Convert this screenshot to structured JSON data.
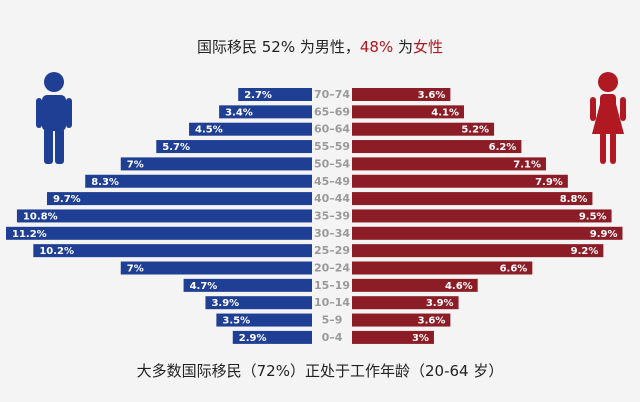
{
  "title": {
    "prefix": "国际移民 52% 为",
    "male_word": "男性",
    "separator": "，",
    "female_pct": "48%",
    "mid": " 为",
    "female_word": "女性"
  },
  "footer": "大多数国际移民（72%）正处于工作年龄（20-64 岁）",
  "colors": {
    "male": "#1f3f94",
    "female": "#8c1c25",
    "background": "#f4f4f4"
  },
  "icons": {
    "male": "male-figure-icon",
    "female": "female-figure-icon"
  },
  "chart_data": {
    "type": "bar",
    "subtype": "population-pyramid",
    "title": "国际移民 52% 为男性，48% 为女性",
    "categories": [
      "70–74",
      "65–69",
      "60–64",
      "55–59",
      "50–54",
      "45–49",
      "40–44",
      "35–39",
      "30–34",
      "25–29",
      "20–24",
      "15–19",
      "10–14",
      "5–9",
      "0–4"
    ],
    "series": [
      {
        "name": "男性",
        "values": [
          2.7,
          3.4,
          4.5,
          5.7,
          7,
          8.3,
          9.7,
          10.8,
          11.2,
          10.2,
          7,
          4.7,
          3.9,
          3.5,
          2.9
        ],
        "labels": [
          "2.7%",
          "3.4%",
          "4.5%",
          "5.7%",
          "7%",
          "8.3%",
          "9.7%",
          "10.8%",
          "11.2%",
          "10.2%",
          "7%",
          "4.7%",
          "3.9%",
          "3.5%",
          "2.9%"
        ]
      },
      {
        "name": "女性",
        "values": [
          3.6,
          4.1,
          5.2,
          6.2,
          7.1,
          7.9,
          8.8,
          9.5,
          9.9,
          9.2,
          6.6,
          4.6,
          3.9,
          3.6,
          3
        ],
        "labels": [
          "3.6%",
          "4.1%",
          "5.2%",
          "6.2%",
          "7.1%",
          "7.9%",
          "8.8%",
          "9.5%",
          "9.9%",
          "9.2%",
          "6.6%",
          "4.6%",
          "3.9%",
          "3.6%",
          "3%"
        ]
      }
    ],
    "xlim": [
      0,
      11.2
    ],
    "legend": "icons: male left, female right"
  }
}
